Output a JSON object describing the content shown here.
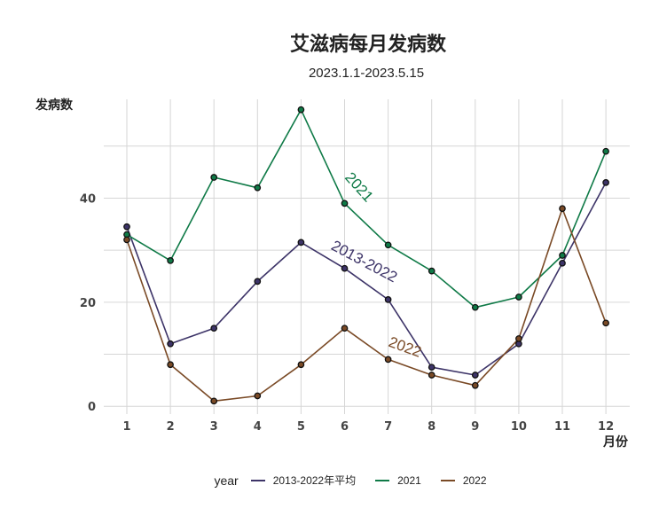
{
  "chart_data": {
    "type": "line",
    "title": "艾滋病每月发病数",
    "subtitle": "2023.1.1-2023.5.15",
    "xlabel": "月份",
    "ylabel": "发病数",
    "categories": [
      "1",
      "2",
      "3",
      "4",
      "5",
      "6",
      "7",
      "8",
      "9",
      "10",
      "11",
      "12"
    ],
    "ylim": [
      -1.5,
      59
    ],
    "yticks": [
      0,
      20,
      40
    ],
    "grid": true,
    "legend_position": "bottom",
    "legend_title": "year",
    "series": [
      {
        "name": "2013-2022年平均",
        "color": "#3d3468",
        "values": [
          34.5,
          12,
          15,
          24,
          31.5,
          26.5,
          20.5,
          7.5,
          6,
          12,
          27.5,
          43
        ],
        "label": "2013-2022",
        "label_at": 6.4,
        "label_value": 27,
        "label_angle": 28
      },
      {
        "name": "2021",
        "color": "#0f7a47",
        "values": [
          33,
          28,
          44,
          42,
          57,
          39,
          31,
          26,
          19,
          21,
          29,
          49
        ],
        "label": "2021",
        "label_at": 6.25,
        "label_value": 41.5,
        "label_angle": 48
      },
      {
        "name": "2022",
        "color": "#7a4a26",
        "values": [
          32,
          8,
          1,
          2,
          8,
          15,
          9,
          6,
          4,
          13,
          38,
          16
        ],
        "label": "2022",
        "label_at": 7.35,
        "label_value": 10.5,
        "label_angle": 20
      }
    ]
  }
}
